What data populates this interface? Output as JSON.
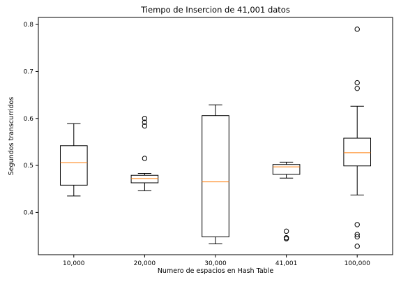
{
  "chart_data": {
    "type": "box",
    "title": "Tiempo de Insercion de 41,001 datos",
    "xlabel": "Numero de espacios en Hash Table",
    "ylabel": "Segundos transcurridos",
    "ylim": [
      0.31,
      0.815
    ],
    "yticks": [
      "0.4",
      "0.5",
      "0.6",
      "0.7",
      "0.8"
    ],
    "grid": false,
    "colors": {
      "box": "#000000",
      "median": "#ff7f0e",
      "outlier": "#000000"
    },
    "categories": [
      "10,000",
      "20,000",
      "30,000",
      "41,001",
      "100,000"
    ],
    "boxes": [
      {
        "label": "10,000",
        "whisker_low": 0.435,
        "q1": 0.458,
        "median": 0.506,
        "q3": 0.542,
        "whisker_high": 0.589,
        "outliers": []
      },
      {
        "label": "20,000",
        "whisker_low": 0.446,
        "q1": 0.463,
        "median": 0.472,
        "q3": 0.479,
        "whisker_high": 0.483,
        "outliers": [
          0.515,
          0.584,
          0.592,
          0.6
        ]
      },
      {
        "label": "30,000",
        "whisker_low": 0.333,
        "q1": 0.348,
        "median": 0.465,
        "q3": 0.606,
        "whisker_high": 0.629,
        "outliers": []
      },
      {
        "label": "41,001",
        "whisker_low": 0.473,
        "q1": 0.481,
        "median": 0.497,
        "q3": 0.502,
        "whisker_high": 0.507,
        "outliers": [
          0.344,
          0.346,
          0.36
        ]
      },
      {
        "label": "100,000",
        "whisker_low": 0.437,
        "q1": 0.499,
        "median": 0.527,
        "q3": 0.558,
        "whisker_high": 0.626,
        "outliers": [
          0.328,
          0.348,
          0.353,
          0.374,
          0.664,
          0.676,
          0.79
        ]
      }
    ]
  }
}
